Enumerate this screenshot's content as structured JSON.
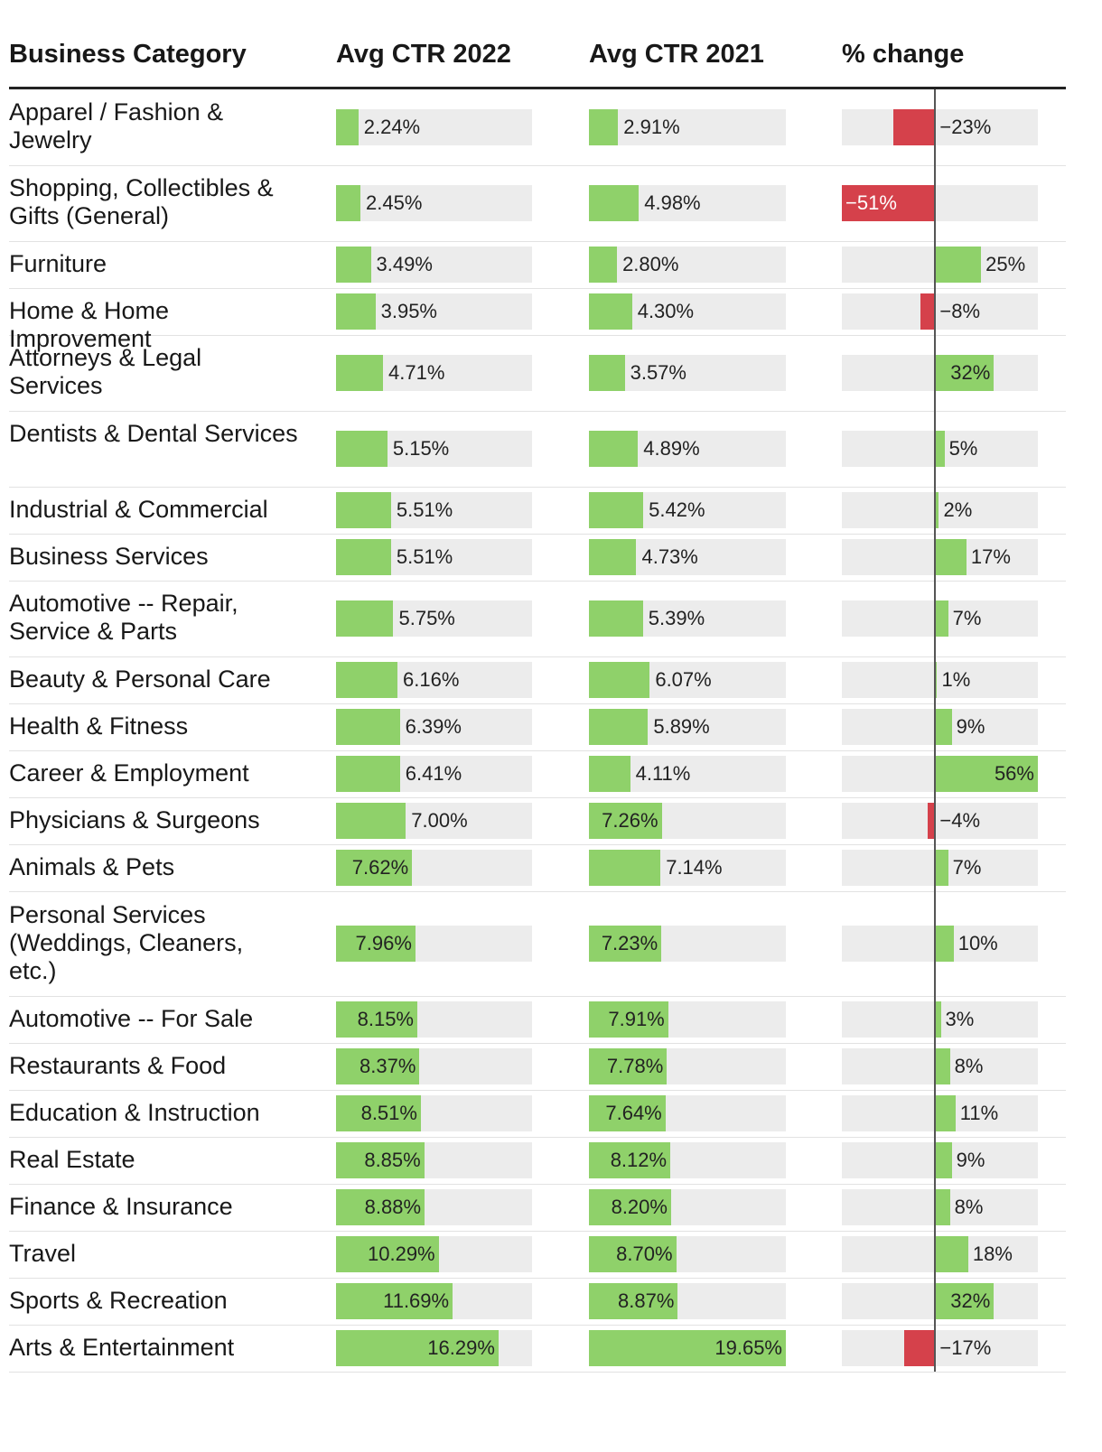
{
  "header": {
    "category": "Business Category",
    "ctr2022": "Avg CTR 2022",
    "ctr2021": "Avg CTR 2021",
    "change": "% change"
  },
  "colors": {
    "positive": "#8fd16a",
    "negative": "#d5414b",
    "track": "#ececec"
  },
  "chart_data": {
    "type": "table",
    "columns": [
      "Business Category",
      "Avg CTR 2022",
      "Avg CTR 2021",
      "% change"
    ],
    "ctr_max": 19.65,
    "change_range": [
      -51,
      56
    ],
    "rows": [
      {
        "category": "Apparel / Fashion & Jewelry",
        "ctr2022": 2.24,
        "ctr2022_label": "2.24%",
        "ctr2021": 2.91,
        "ctr2021_label": "2.91%",
        "change": -23,
        "change_label": "−23%"
      },
      {
        "category": "Shopping, Collectibles & Gifts (General)",
        "ctr2022": 2.45,
        "ctr2022_label": "2.45%",
        "ctr2021": 4.98,
        "ctr2021_label": "4.98%",
        "change": -51,
        "change_label": "−51%"
      },
      {
        "category": "Furniture",
        "ctr2022": 3.49,
        "ctr2022_label": "3.49%",
        "ctr2021": 2.8,
        "ctr2021_label": "2.80%",
        "change": 25,
        "change_label": "25%"
      },
      {
        "category": "Home & Home Improvement",
        "ctr2022": 3.95,
        "ctr2022_label": "3.95%",
        "ctr2021": 4.3,
        "ctr2021_label": "4.30%",
        "change": -8,
        "change_label": "−8%"
      },
      {
        "category": "Attorneys & Legal Services",
        "ctr2022": 4.71,
        "ctr2022_label": "4.71%",
        "ctr2021": 3.57,
        "ctr2021_label": "3.57%",
        "change": 32,
        "change_label": "32%"
      },
      {
        "category": "Dentists & Dental Services",
        "ctr2022": 5.15,
        "ctr2022_label": "5.15%",
        "ctr2021": 4.89,
        "ctr2021_label": "4.89%",
        "change": 5,
        "change_label": "5%"
      },
      {
        "category": "Industrial & Commercial",
        "ctr2022": 5.51,
        "ctr2022_label": "5.51%",
        "ctr2021": 5.42,
        "ctr2021_label": "5.42%",
        "change": 2,
        "change_label": "2%"
      },
      {
        "category": "Business Services",
        "ctr2022": 5.51,
        "ctr2022_label": "5.51%",
        "ctr2021": 4.73,
        "ctr2021_label": "4.73%",
        "change": 17,
        "change_label": "17%"
      },
      {
        "category": "Automotive -- Repair, Service & Parts",
        "ctr2022": 5.75,
        "ctr2022_label": "5.75%",
        "ctr2021": 5.39,
        "ctr2021_label": "5.39%",
        "change": 7,
        "change_label": "7%"
      },
      {
        "category": "Beauty & Personal Care",
        "ctr2022": 6.16,
        "ctr2022_label": "6.16%",
        "ctr2021": 6.07,
        "ctr2021_label": "6.07%",
        "change": 1,
        "change_label": "1%"
      },
      {
        "category": "Health & Fitness",
        "ctr2022": 6.39,
        "ctr2022_label": "6.39%",
        "ctr2021": 5.89,
        "ctr2021_label": "5.89%",
        "change": 9,
        "change_label": "9%"
      },
      {
        "category": "Career & Employment",
        "ctr2022": 6.41,
        "ctr2022_label": "6.41%",
        "ctr2021": 4.11,
        "ctr2021_label": "4.11%",
        "change": 56,
        "change_label": "56%"
      },
      {
        "category": "Physicians & Surgeons",
        "ctr2022": 7.0,
        "ctr2022_label": "7.00%",
        "ctr2021": 7.26,
        "ctr2021_label": "7.26%",
        "change": -4,
        "change_label": "−4%"
      },
      {
        "category": "Animals & Pets",
        "ctr2022": 7.62,
        "ctr2022_label": "7.62%",
        "ctr2021": 7.14,
        "ctr2021_label": "7.14%",
        "change": 7,
        "change_label": "7%"
      },
      {
        "category": "Personal Services (Weddings, Cleaners, etc.)",
        "ctr2022": 7.96,
        "ctr2022_label": "7.96%",
        "ctr2021": 7.23,
        "ctr2021_label": "7.23%",
        "change": 10,
        "change_label": "10%"
      },
      {
        "category": "Automotive -- For Sale",
        "ctr2022": 8.15,
        "ctr2022_label": "8.15%",
        "ctr2021": 7.91,
        "ctr2021_label": "7.91%",
        "change": 3,
        "change_label": "3%"
      },
      {
        "category": "Restaurants & Food",
        "ctr2022": 8.37,
        "ctr2022_label": "8.37%",
        "ctr2021": 7.78,
        "ctr2021_label": "7.78%",
        "change": 8,
        "change_label": "8%"
      },
      {
        "category": "Education & Instruction",
        "ctr2022": 8.51,
        "ctr2022_label": "8.51%",
        "ctr2021": 7.64,
        "ctr2021_label": "7.64%",
        "change": 11,
        "change_label": "11%"
      },
      {
        "category": "Real Estate",
        "ctr2022": 8.85,
        "ctr2022_label": "8.85%",
        "ctr2021": 8.12,
        "ctr2021_label": "8.12%",
        "change": 9,
        "change_label": "9%"
      },
      {
        "category": "Finance & Insurance",
        "ctr2022": 8.88,
        "ctr2022_label": "8.88%",
        "ctr2021": 8.2,
        "ctr2021_label": "8.20%",
        "change": 8,
        "change_label": "8%"
      },
      {
        "category": "Travel",
        "ctr2022": 10.29,
        "ctr2022_label": "10.29%",
        "ctr2021": 8.7,
        "ctr2021_label": "8.70%",
        "change": 18,
        "change_label": "18%"
      },
      {
        "category": "Sports & Recreation",
        "ctr2022": 11.69,
        "ctr2022_label": "11.69%",
        "ctr2021": 8.87,
        "ctr2021_label": "8.87%",
        "change": 32,
        "change_label": "32%"
      },
      {
        "category": "Arts & Entertainment",
        "ctr2022": 16.29,
        "ctr2022_label": "16.29%",
        "ctr2021": 19.65,
        "ctr2021_label": "19.65%",
        "change": -17,
        "change_label": "−17%"
      }
    ]
  }
}
